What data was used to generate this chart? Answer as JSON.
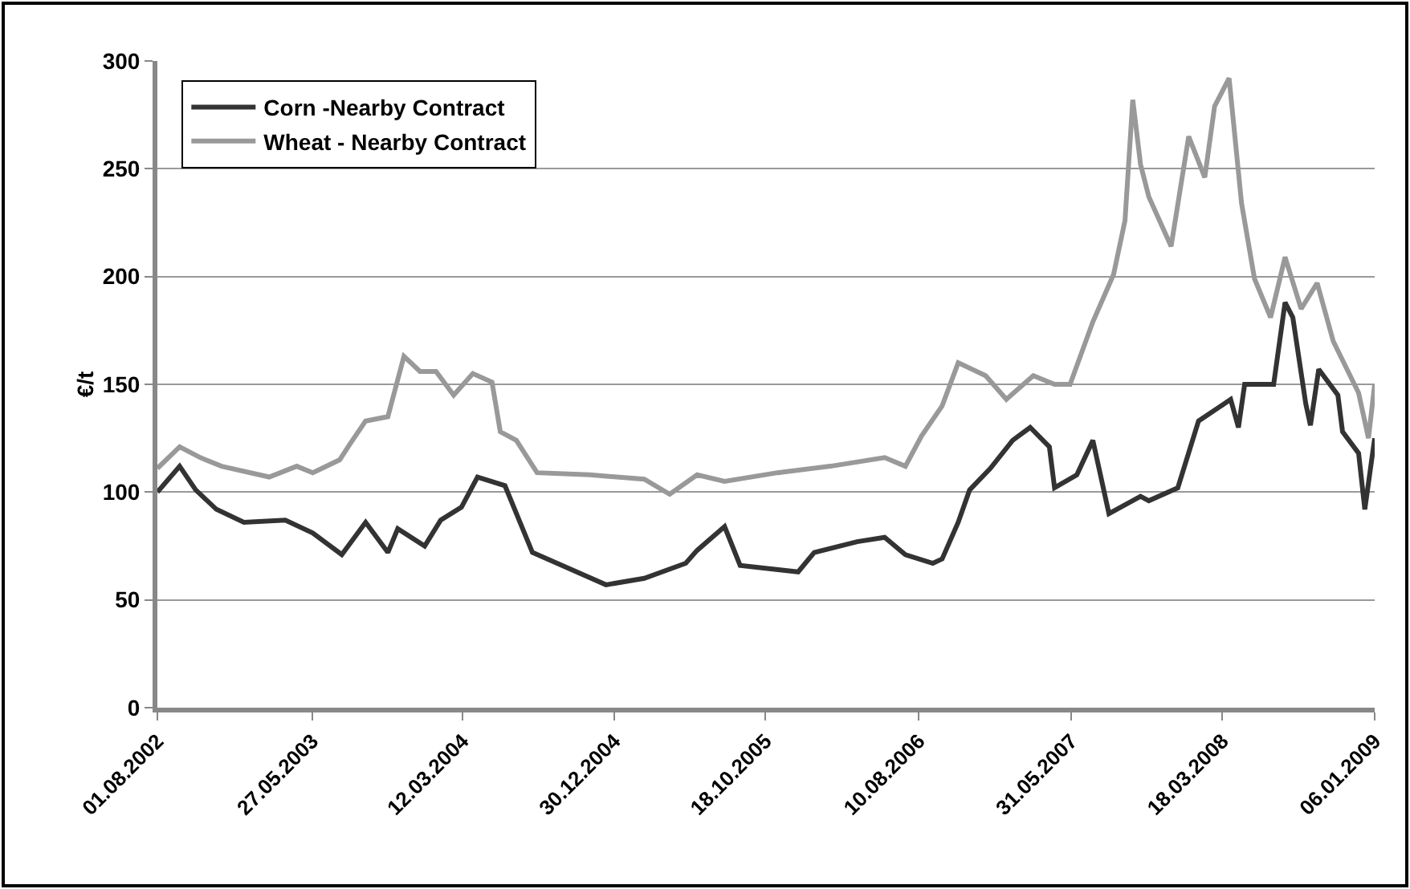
{
  "chart_data": {
    "type": "line",
    "ylabel": "€/t",
    "xlim": [
      "2002-08-01",
      "2009-01-06"
    ],
    "xticks": [
      {
        "value": "2002-08-01",
        "label": "01.08.2002"
      },
      {
        "value": "2003-05-27",
        "label": "27.05.2003"
      },
      {
        "value": "2004-03-12",
        "label": "12.03.2004"
      },
      {
        "value": "2004-12-30",
        "label": "30.12.2004"
      },
      {
        "value": "2005-10-18",
        "label": "18.10.2005"
      },
      {
        "value": "2006-08-10",
        "label": "10.08.2006"
      },
      {
        "value": "2007-05-31",
        "label": "31.05.2007"
      },
      {
        "value": "2008-03-18",
        "label": "18.03.2008"
      },
      {
        "value": "2009-01-06",
        "label": "06.01.2009"
      }
    ],
    "ylim": [
      0,
      300
    ],
    "yticks": [
      0,
      50,
      100,
      150,
      200,
      250,
      300
    ],
    "grid": "y",
    "legend": "top left",
    "line_style": "solid",
    "series": [
      {
        "name": "Corn -Nearby Contract",
        "color": "#333333",
        "x": [
          "2002-08-01",
          "2002-09-13",
          "2002-10-14",
          "2002-11-23",
          "2003-01-15",
          "2003-04-05",
          "2003-05-28",
          "2003-07-23",
          "2003-09-07",
          "2003-10-20",
          "2003-11-08",
          "2003-12-30",
          "2004-01-30",
          "2004-03-10",
          "2004-04-10",
          "2004-06-02",
          "2004-07-25",
          "2004-12-14",
          "2005-02-26",
          "2005-05-17",
          "2005-06-08",
          "2005-07-31",
          "2005-08-30",
          "2005-12-20",
          "2006-01-20",
          "2006-04-13",
          "2006-06-05",
          "2006-07-15",
          "2006-09-06",
          "2006-09-24",
          "2006-10-25",
          "2006-11-16",
          "2006-12-26",
          "2007-02-07",
          "2007-03-13",
          "2007-04-19",
          "2007-04-29",
          "2007-06-11",
          "2007-07-12",
          "2007-08-12",
          "2007-10-12",
          "2007-10-28",
          "2007-12-23",
          "2008-02-01",
          "2008-04-03",
          "2008-04-18",
          "2008-04-30",
          "2008-06-25",
          "2008-07-17",
          "2008-08-01",
          "2008-08-26",
          "2008-09-04",
          "2008-09-20",
          "2008-10-27",
          "2008-11-05",
          "2008-12-06",
          "2008-12-18",
          "2009-01-06"
        ],
        "values": [
          100,
          112,
          101,
          92,
          86,
          87,
          81,
          71,
          86,
          72,
          83,
          75,
          87,
          93,
          107,
          103,
          72,
          57,
          60,
          67,
          73,
          84,
          66,
          63,
          72,
          77,
          79,
          71,
          67,
          69,
          86,
          101,
          111,
          124,
          130,
          121,
          102,
          108,
          124,
          90,
          98,
          96,
          102,
          133,
          143,
          130,
          150,
          150,
          188,
          181,
          141,
          131,
          157,
          145,
          128,
          118,
          92,
          125
        ]
      },
      {
        "name": "Wheat - Nearby Contract",
        "color": "#999999",
        "x": [
          "2002-08-01",
          "2002-09-13",
          "2002-10-23",
          "2002-12-03",
          "2003-03-05",
          "2003-04-27",
          "2003-05-28",
          "2003-07-19",
          "2003-08-07",
          "2003-09-07",
          "2003-10-20",
          "2003-11-20",
          "2003-12-21",
          "2004-01-21",
          "2004-02-24",
          "2004-04-01",
          "2004-05-08",
          "2004-05-24",
          "2004-06-24",
          "2004-08-03",
          "2004-11-13",
          "2005-02-26",
          "2005-04-16",
          "2005-06-08",
          "2005-07-31",
          "2005-11-10",
          "2006-02-20",
          "2006-06-05",
          "2006-07-15",
          "2006-08-15",
          "2006-09-24",
          "2006-10-25",
          "2006-12-17",
          "2007-01-26",
          "2007-03-19",
          "2007-04-29",
          "2007-05-29",
          "2007-07-12",
          "2007-08-21",
          "2007-09-12",
          "2007-09-27",
          "2007-10-12",
          "2007-10-28",
          "2007-12-10",
          "2008-01-13",
          "2008-02-13",
          "2008-03-03",
          "2008-03-31",
          "2008-04-24",
          "2008-05-19",
          "2008-06-19",
          "2008-07-17",
          "2008-08-17",
          "2008-09-17",
          "2008-10-18",
          "2008-12-06",
          "2008-12-25",
          "2009-01-06"
        ],
        "values": [
          111,
          121,
          116,
          112,
          107,
          112,
          109,
          115,
          122,
          133,
          135,
          163,
          156,
          156,
          145,
          155,
          151,
          128,
          124,
          109,
          108,
          106,
          99,
          108,
          105,
          109,
          112,
          116,
          112,
          126,
          140,
          160,
          154,
          143,
          154,
          150,
          150,
          179,
          201,
          226,
          282,
          252,
          237,
          214,
          265,
          246,
          279,
          292,
          234,
          199,
          181,
          209,
          185,
          197,
          170,
          146,
          125,
          150
        ]
      }
    ]
  }
}
